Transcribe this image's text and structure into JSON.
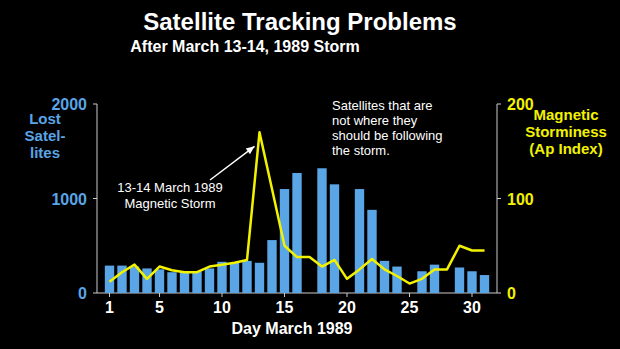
{
  "chart_data": {
    "type": "bar",
    "title": "Satellite Tracking Problems",
    "subtitle": "After March 13-14, 1989 Storm",
    "ylabel": [
      "Lost",
      "Satel-",
      "lites"
    ],
    "y2label": [
      "Magnetic",
      "Storminess",
      "(Ap Index)"
    ],
    "xlabel": "Day March 1989",
    "annotations": [
      {
        "text": [
          "Satellites that are",
          "not where they",
          "should be following",
          "the storm."
        ]
      },
      {
        "text": [
          "13-14 March 1989",
          "Magnetic Storm"
        ]
      }
    ],
    "x": [
      1,
      2,
      3,
      4,
      5,
      6,
      7,
      8,
      9,
      10,
      11,
      12,
      13,
      14,
      15,
      16,
      17,
      18,
      19,
      20,
      21,
      22,
      23,
      24,
      25,
      26,
      27,
      28,
      29,
      30,
      31
    ],
    "xlim": [
      0,
      32
    ],
    "xticks": [
      1,
      5,
      10,
      15,
      20,
      25,
      30
    ],
    "ylim": [
      0,
      2000
    ],
    "yticks": [
      0,
      1000,
      2000
    ],
    "y2lim": [
      0,
      200
    ],
    "y2ticks": [
      0,
      100,
      200
    ],
    "series": [
      {
        "type": "bar",
        "color": "#5aa5e6",
        "values": [
          290,
          290,
          280,
          260,
          250,
          220,
          230,
          230,
          260,
          330,
          320,
          340,
          320,
          560,
          1100,
          1270,
          null,
          1320,
          1150,
          null,
          1100,
          880,
          340,
          280,
          null,
          230,
          300,
          null,
          270,
          230,
          190
        ]
      },
      {
        "type": "line",
        "color": "#f2f200",
        "axis": "y2",
        "values": [
          12,
          22,
          30,
          15,
          28,
          24,
          22,
          22,
          28,
          30,
          32,
          35,
          170,
          110,
          50,
          38,
          38,
          28,
          35,
          15,
          25,
          36,
          25,
          18,
          10,
          15,
          25,
          25,
          50,
          45,
          45
        ]
      }
    ]
  }
}
